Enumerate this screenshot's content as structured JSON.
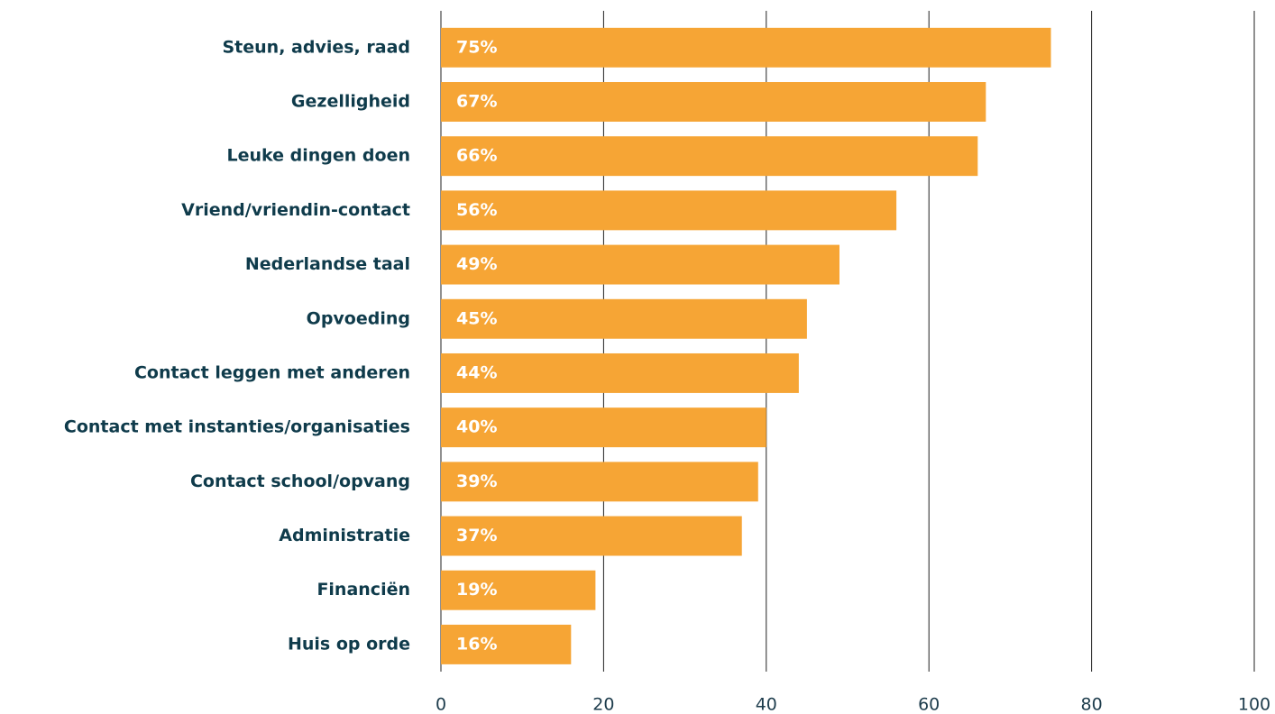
{
  "chart_data": {
    "type": "bar",
    "orientation": "horizontal",
    "categories": [
      "Steun, advies, raad",
      "Gezelligheid",
      "Leuke dingen doen",
      "Vriend/vriendin-contact",
      "Nederlandse taal",
      "Opvoeding",
      "Contact leggen met anderen",
      "Contact met instanties/organisaties",
      "Contact school/opvang",
      "Administratie",
      "Financiën",
      "Huis op orde"
    ],
    "values": [
      75,
      67,
      66,
      56,
      49,
      45,
      44,
      40,
      39,
      37,
      19,
      16
    ],
    "value_labels": [
      "75%",
      "67%",
      "66%",
      "56%",
      "49%",
      "45%",
      "44%",
      "40%",
      "39%",
      "37%",
      "19%",
      "16%"
    ],
    "color": "#f6a535",
    "xlim": [
      0,
      100
    ],
    "xticks": [
      0,
      20,
      40,
      60,
      80,
      100
    ],
    "grid": true
  }
}
